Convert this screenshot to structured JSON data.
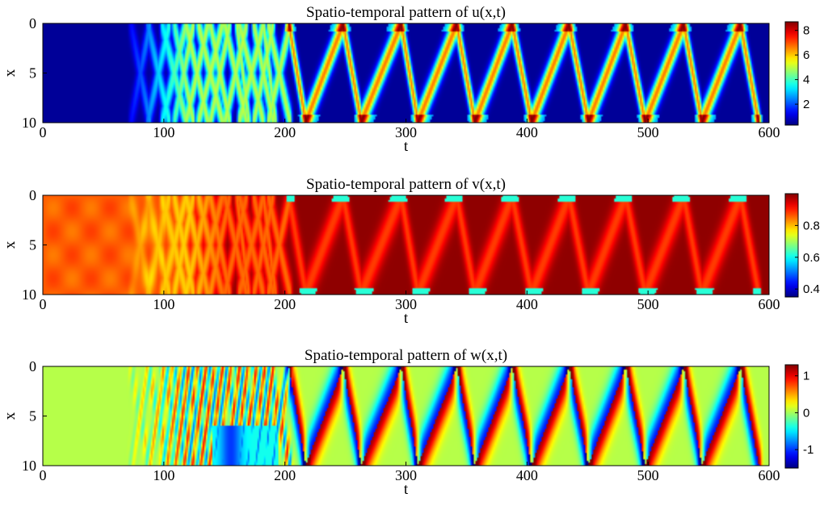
{
  "chart_data": [
    {
      "type": "heatmap",
      "field": "u",
      "title": "Spatio-temporal pattern of u(x,t)",
      "xlabel": "t",
      "ylabel": "x",
      "xlim": [
        0,
        600
      ],
      "ylim": [
        0,
        10
      ],
      "y_axis_direction": "reversed",
      "xticks": [
        "0",
        "100",
        "200",
        "300",
        "400",
        "500",
        "600"
      ],
      "yticks": [
        "0",
        "5",
        "10"
      ],
      "colormap": "jet",
      "clim": [
        0.3,
        8.7
      ],
      "colorbar_ticks": [
        "2",
        "4",
        "6",
        "8"
      ],
      "colorbar_tick_values": [
        2,
        4,
        6,
        8
      ],
      "background_value": 0.5,
      "peak_value": 8.7,
      "pattern": {
        "onset_t": 70,
        "transient_end_t": 210,
        "regular_start_t": 217,
        "regular_period_t": 47,
        "zigzag_vertex_times_x0": [
          203,
          248,
          296,
          342,
          388,
          435,
          482,
          530,
          577
        ],
        "zigzag_vertex_times_x10": [
          217,
          263,
          310,
          357,
          404,
          451,
          498,
          545,
          592
        ]
      }
    },
    {
      "type": "heatmap",
      "field": "v",
      "title": "Spatio-temporal pattern of v(x,t)",
      "xlabel": "t",
      "ylabel": "x",
      "xlim": [
        0,
        600
      ],
      "ylim": [
        0,
        10
      ],
      "y_axis_direction": "reversed",
      "xticks": [
        "0",
        "100",
        "200",
        "300",
        "400",
        "500",
        "600"
      ],
      "yticks": [
        "0",
        "5",
        "10"
      ],
      "colormap": "jet",
      "clim": [
        0.35,
        1.0
      ],
      "colorbar_ticks": [
        "0.4",
        "0.6",
        "0.8"
      ],
      "colorbar_tick_values": [
        0.4,
        0.6,
        0.8
      ],
      "background_value_early": 0.86,
      "background_value_late": 0.99,
      "wave_value": 0.88,
      "crossing_value": 0.62
    },
    {
      "type": "heatmap",
      "field": "w",
      "title": "Spatio-temporal pattern of w(x,t)",
      "xlabel": "t",
      "ylabel": "x",
      "xlim": [
        0,
        600
      ],
      "ylim": [
        0,
        10
      ],
      "y_axis_direction": "reversed",
      "xticks": [
        "0",
        "100",
        "200",
        "300",
        "400",
        "500",
        "600"
      ],
      "yticks": [
        "0",
        "5",
        "10"
      ],
      "colormap": "jet",
      "clim": [
        -1.5,
        1.3
      ],
      "colorbar_ticks": [
        "1",
        "0",
        "-1"
      ],
      "colorbar_tick_values": [
        1,
        0,
        -1
      ],
      "background_value": 0.05,
      "positive_band_value": 1.2,
      "negative_band_value": -1.3
    }
  ]
}
